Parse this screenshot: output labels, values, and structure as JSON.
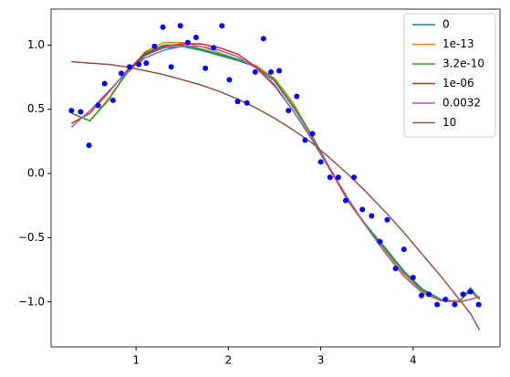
{
  "chart_data": {
    "type": "line",
    "x": [
      0.3,
      0.5,
      0.7,
      0.9,
      1.1,
      1.3,
      1.5,
      1.7,
      1.9,
      2.1,
      2.3,
      2.5,
      2.7,
      2.9,
      3.1,
      3.3,
      3.5,
      3.7,
      3.9,
      4.1,
      4.3,
      4.5,
      4.62,
      4.72
    ],
    "series": [
      {
        "name": "0",
        "color": "#1f77b4",
        "values": [
          0.47,
          0.41,
          0.58,
          0.78,
          0.92,
          0.98,
          0.99,
          0.96,
          0.92,
          0.88,
          0.83,
          0.72,
          0.52,
          0.3,
          0.04,
          -0.22,
          -0.41,
          -0.58,
          -0.76,
          -0.9,
          -0.98,
          -1.0,
          -0.89,
          -0.98
        ]
      },
      {
        "name": "1e-13",
        "color": "#ff7f0e",
        "values": [
          0.47,
          0.41,
          0.58,
          0.79,
          0.95,
          1.02,
          1.02,
          0.99,
          0.94,
          0.89,
          0.84,
          0.74,
          0.55,
          0.3,
          0.03,
          -0.22,
          -0.42,
          -0.6,
          -0.78,
          -0.92,
          -0.99,
          -0.99,
          -0.92,
          -0.98
        ]
      },
      {
        "name": "3.2e-10",
        "color": "#2ca02c",
        "values": [
          0.47,
          0.41,
          0.57,
          0.79,
          0.94,
          1.0,
          1.0,
          0.97,
          0.93,
          0.89,
          0.83,
          0.73,
          0.53,
          0.3,
          0.04,
          -0.22,
          -0.41,
          -0.59,
          -0.77,
          -0.91,
          -0.98,
          -1.0,
          -0.9,
          -0.98
        ]
      },
      {
        "name": "1e-06",
        "color": "#d62728",
        "values": [
          0.39,
          0.47,
          0.63,
          0.8,
          0.93,
          0.99,
          1.01,
          1.01,
          0.98,
          0.93,
          0.83,
          0.69,
          0.49,
          0.27,
          0.03,
          -0.21,
          -0.42,
          -0.62,
          -0.8,
          -0.93,
          -0.99,
          -1.0,
          -0.98,
          -0.96
        ]
      },
      {
        "name": "0.0032",
        "color": "#9467bd",
        "values": [
          0.36,
          0.49,
          0.64,
          0.79,
          0.9,
          0.96,
          0.99,
          0.99,
          0.96,
          0.91,
          0.82,
          0.68,
          0.49,
          0.28,
          0.04,
          -0.2,
          -0.42,
          -0.62,
          -0.8,
          -0.93,
          -0.99,
          -1.0,
          -0.98,
          -0.96
        ]
      },
      {
        "name": "10",
        "color": "#8c564b",
        "values": [
          0.87,
          0.86,
          0.85,
          0.83,
          0.8,
          0.77,
          0.73,
          0.69,
          0.64,
          0.58,
          0.51,
          0.43,
          0.34,
          0.24,
          0.12,
          -0.01,
          -0.15,
          -0.3,
          -0.46,
          -0.63,
          -0.8,
          -0.98,
          -1.09,
          -1.22
        ]
      }
    ],
    "scatter": {
      "color": "#0000ff",
      "x": [
        0.3,
        0.4,
        0.49,
        0.59,
        0.66,
        0.75,
        0.84,
        0.93,
        1.03,
        1.11,
        1.2,
        1.29,
        1.38,
        1.48,
        1.56,
        1.65,
        1.75,
        1.84,
        1.93,
        2.01,
        2.1,
        2.2,
        2.29,
        2.38,
        2.46,
        2.55,
        2.65,
        2.74,
        2.83,
        2.91,
        3.0,
        3.1,
        3.19,
        3.27,
        3.36,
        3.45,
        3.55,
        3.64,
        3.72,
        3.81,
        3.9,
        4.0,
        4.09,
        4.17,
        4.26,
        4.35,
        4.45,
        4.54,
        4.62,
        4.71
      ],
      "y": [
        0.49,
        0.48,
        0.22,
        0.53,
        0.7,
        0.57,
        0.78,
        0.83,
        0.85,
        0.86,
        0.99,
        1.14,
        0.83,
        1.15,
        1.02,
        1.06,
        0.82,
        0.98,
        1.15,
        0.73,
        0.56,
        0.55,
        0.79,
        1.05,
        0.79,
        0.8,
        0.49,
        0.6,
        0.26,
        0.31,
        0.09,
        -0.03,
        -0.03,
        -0.21,
        -0.03,
        -0.28,
        -0.33,
        -0.53,
        -0.36,
        -0.74,
        -0.59,
        -0.81,
        -0.95,
        -0.94,
        -1.02,
        -0.98,
        -1.02,
        -0.94,
        -0.92,
        -1.02
      ]
    },
    "xlim": [
      0.08,
      4.94
    ],
    "ylim": [
      -1.35,
      1.28
    ],
    "xticks": [
      1,
      2,
      3,
      4
    ],
    "yticks": [
      {
        "value": -1,
        "label": "−1.0"
      },
      {
        "value": -0.5,
        "label": "−0.5"
      },
      {
        "value": 0,
        "label": "0.0"
      },
      {
        "value": 0.5,
        "label": "0.5"
      },
      {
        "value": 1,
        "label": "1.0"
      }
    ],
    "legend": "upper right"
  }
}
